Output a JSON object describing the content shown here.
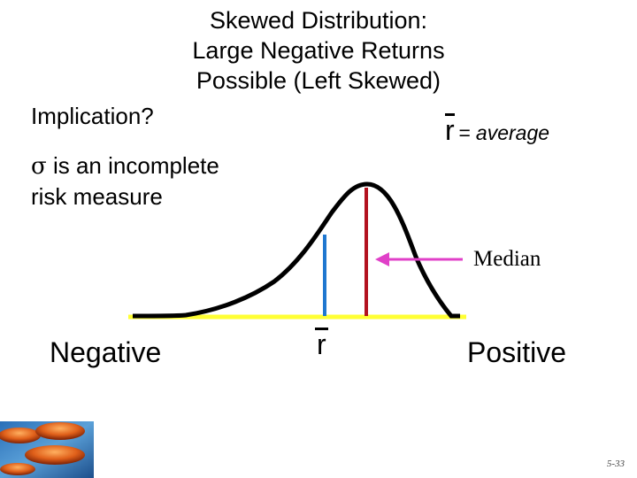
{
  "title": {
    "line1": "Skewed Distribution:",
    "line2": "Large Negative Returns",
    "line3": "Possible (Left Skewed)"
  },
  "implication": "Implication?",
  "sigma_note": {
    "symbol": "σ",
    "line1_rest": " is an incomplete",
    "line2": "risk measure"
  },
  "mean_legend": {
    "symbol": "r",
    "text": "= average"
  },
  "median_label": "Median",
  "axis_labels": {
    "negative": "Negative",
    "mean": "r",
    "positive": "Positive"
  },
  "slide_number": "5-33",
  "colors": {
    "curve": "#000000",
    "axis": "#ffff33",
    "mean_line": "#1f77d0",
    "median_line": "#b3121f",
    "arrow": "#e040c8"
  },
  "icons": {
    "corner_image": "stones-on-water-icon"
  }
}
